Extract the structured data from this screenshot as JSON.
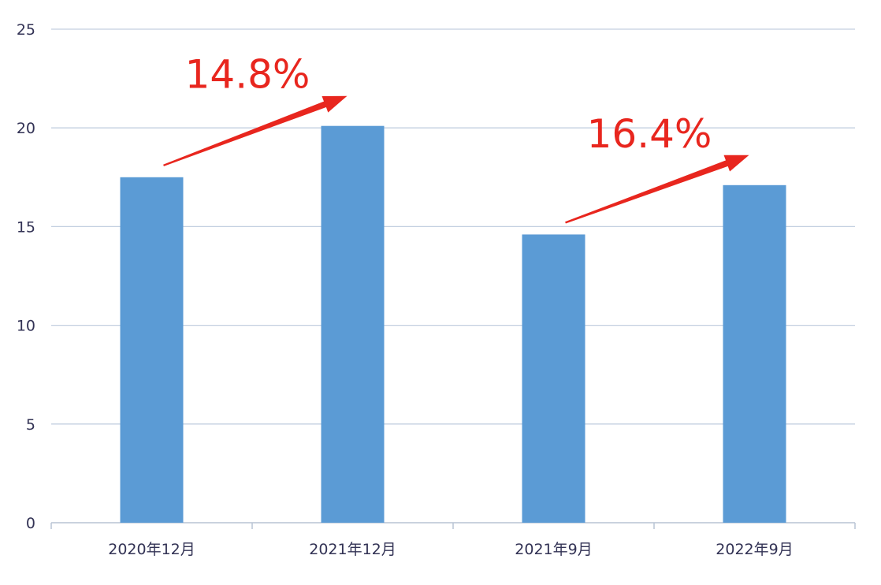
{
  "chart_data": {
    "type": "bar",
    "categories": [
      "2020年12月",
      "2021年12月",
      "2021年9月",
      "2022年9月"
    ],
    "values": [
      17.5,
      20.1,
      14.6,
      17.1
    ],
    "title": "",
    "xlabel": "",
    "ylabel": "",
    "ylim": [
      0,
      25
    ],
    "yticks": [
      0,
      5,
      10,
      15,
      20,
      25
    ],
    "grid": true,
    "legend": "none",
    "bar_color": "#5b9bd5",
    "annotations": [
      {
        "text": "14.8%",
        "from_category": 0,
        "to_category": 1,
        "color": "#e8261e"
      },
      {
        "text": "16.4%",
        "from_category": 2,
        "to_category": 3,
        "color": "#e8261e"
      }
    ]
  }
}
